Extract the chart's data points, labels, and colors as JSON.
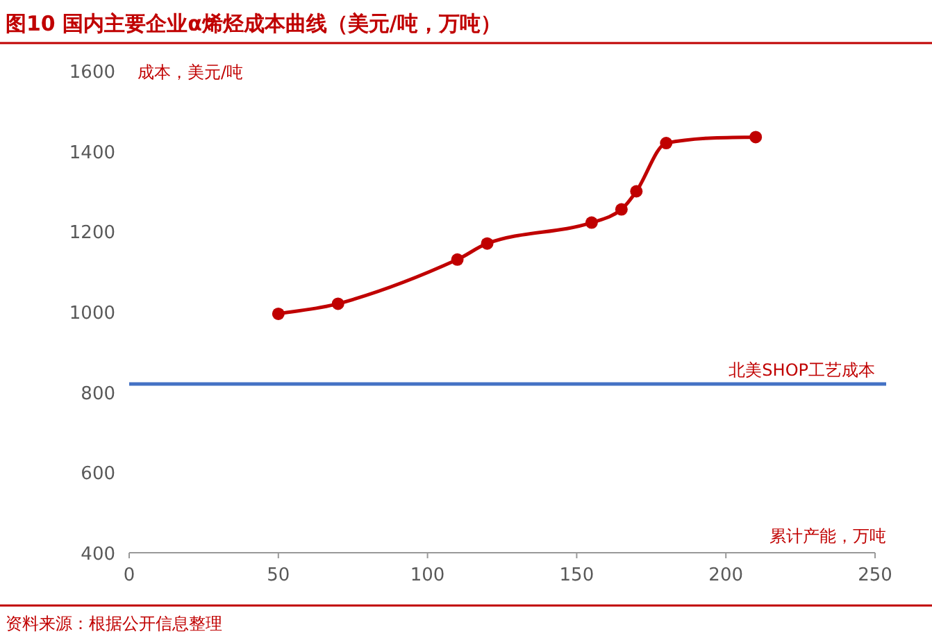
{
  "chart_data": {
    "type": "line",
    "title": "图10  国内主要企业α烯烃成本曲线（美元/吨，万吨）",
    "xlabel": "累计产能，万吨",
    "ylabel": "成本，美元/吨",
    "x": [
      50,
      70,
      110,
      120,
      155,
      165,
      170,
      180,
      210
    ],
    "series": [
      {
        "color": "#c00000",
        "values": [
          995,
          1020,
          1130,
          1170,
          1222,
          1255,
          1300,
          1420,
          1435
        ]
      }
    ],
    "marker": "circle",
    "line_style": "solid",
    "xlim": [
      0,
      250
    ],
    "xticks": [
      0,
      50,
      100,
      150,
      200,
      250
    ],
    "ylim": [
      400,
      1600
    ],
    "yticks": [
      400,
      600,
      800,
      1000,
      1200,
      1400,
      1600
    ],
    "ref_lines": [
      {
        "axis": "y",
        "value": 820,
        "label": "北美SHOP工艺成本",
        "color": "#4472c4"
      }
    ],
    "grid": false,
    "annotations": [
      "资料来源：根据公开信息整理"
    ]
  }
}
